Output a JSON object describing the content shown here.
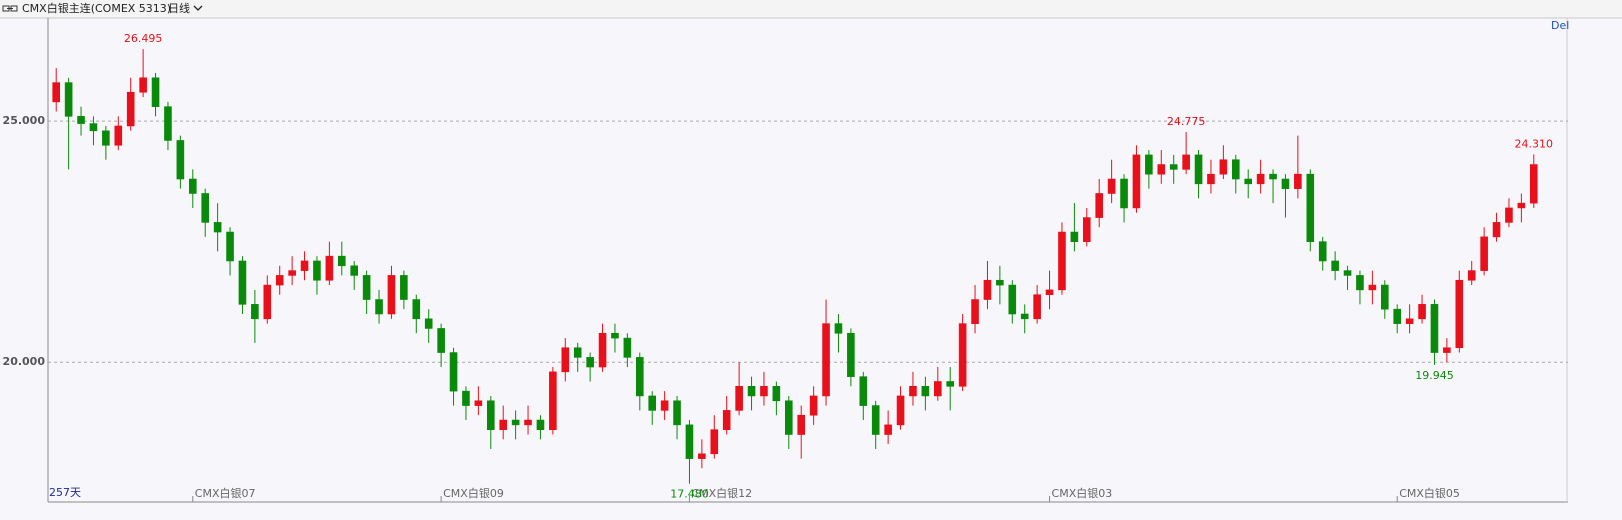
{
  "chart_data": {
    "type": "candlestick",
    "title": "CMX白银主连(COMEX 5313)",
    "period": "日线",
    "bar_count_label": "257天",
    "corner_label": "Del",
    "up_color": "#e8101a",
    "down_color": "#0a8a0a",
    "ylim": [
      17.1,
      27.14
    ],
    "yticks": [
      {
        "value": 20,
        "label": "20.000"
      },
      {
        "value": 25,
        "label": "25.000"
      }
    ],
    "grid": true,
    "categories": [
      null,
      null,
      null,
      null,
      null,
      null,
      null,
      null,
      null,
      null,
      null,
      "CMX白银07",
      null,
      null,
      null,
      null,
      null,
      null,
      null,
      null,
      null,
      null,
      null,
      null,
      null,
      null,
      null,
      null,
      null,
      null,
      null,
      "CMX白银09",
      null,
      null,
      null,
      null,
      null,
      null,
      null,
      null,
      null,
      null,
      null,
      null,
      null,
      null,
      null,
      null,
      null,
      null,
      null,
      "CMX白银12",
      null,
      null,
      null,
      null,
      null,
      null,
      null,
      null,
      null,
      null,
      null,
      null,
      null,
      null,
      null,
      null,
      null,
      null,
      null,
      null,
      null,
      null,
      null,
      null,
      null,
      null,
      null,
      null,
      "CMX白银03",
      null,
      null,
      null,
      null,
      null,
      null,
      null,
      null,
      null,
      null,
      null,
      null,
      null,
      null,
      null,
      null,
      null,
      null,
      null,
      null,
      null,
      null,
      null,
      null,
      null,
      null,
      null,
      "CMX白银05",
      null,
      null,
      null,
      null,
      null,
      null,
      null,
      null,
      null,
      null,
      null
    ],
    "ohlc": [
      [
        25.4,
        26.1,
        25.2,
        25.8
      ],
      [
        25.8,
        25.9,
        24.0,
        25.1
      ],
      [
        25.1,
        25.3,
        24.7,
        24.95
      ],
      [
        24.95,
        25.1,
        24.5,
        24.8
      ],
      [
        24.8,
        24.9,
        24.2,
        24.5
      ],
      [
        24.5,
        25.1,
        24.4,
        24.9
      ],
      [
        24.9,
        25.9,
        24.8,
        25.6
      ],
      [
        25.6,
        26.495,
        25.5,
        25.9
      ],
      [
        25.9,
        26.0,
        25.1,
        25.3
      ],
      [
        25.3,
        25.4,
        24.4,
        24.6
      ],
      [
        24.6,
        24.7,
        23.6,
        23.8
      ],
      [
        23.8,
        24.0,
        23.2,
        23.5
      ],
      [
        23.5,
        23.6,
        22.6,
        22.9
      ],
      [
        22.9,
        23.3,
        22.3,
        22.7
      ],
      [
        22.7,
        22.8,
        21.8,
        22.1
      ],
      [
        22.1,
        22.2,
        21.0,
        21.2
      ],
      [
        21.2,
        21.5,
        20.4,
        20.9
      ],
      [
        20.9,
        21.8,
        20.8,
        21.6
      ],
      [
        21.6,
        22.0,
        21.4,
        21.8
      ],
      [
        21.8,
        22.2,
        21.6,
        21.9
      ],
      [
        21.9,
        22.3,
        21.7,
        22.1
      ],
      [
        22.1,
        22.2,
        21.4,
        21.7
      ],
      [
        21.7,
        22.5,
        21.6,
        22.2
      ],
      [
        22.2,
        22.5,
        21.8,
        22.0
      ],
      [
        22.0,
        22.1,
        21.5,
        21.8
      ],
      [
        21.8,
        21.9,
        21.0,
        21.3
      ],
      [
        21.3,
        21.5,
        20.8,
        21.0
      ],
      [
        21.0,
        22.0,
        20.9,
        21.8
      ],
      [
        21.8,
        21.9,
        21.1,
        21.3
      ],
      [
        21.3,
        21.4,
        20.6,
        20.9
      ],
      [
        20.9,
        21.1,
        20.4,
        20.7
      ],
      [
        20.7,
        20.8,
        19.9,
        20.2
      ],
      [
        20.2,
        20.3,
        19.1,
        19.4
      ],
      [
        19.4,
        19.5,
        18.8,
        19.1
      ],
      [
        19.1,
        19.5,
        18.9,
        19.2
      ],
      [
        19.2,
        19.3,
        18.2,
        18.6
      ],
      [
        18.6,
        19.1,
        18.4,
        18.8
      ],
      [
        18.8,
        19.0,
        18.4,
        18.7
      ],
      [
        18.7,
        19.1,
        18.5,
        18.8
      ],
      [
        18.8,
        18.9,
        18.4,
        18.6
      ],
      [
        18.6,
        19.9,
        18.5,
        19.8
      ],
      [
        19.8,
        20.5,
        19.6,
        20.3
      ],
      [
        20.3,
        20.4,
        19.8,
        20.1
      ],
      [
        20.1,
        20.2,
        19.6,
        19.9
      ],
      [
        19.9,
        20.8,
        19.8,
        20.6
      ],
      [
        20.6,
        20.8,
        20.2,
        20.5
      ],
      [
        20.5,
        20.6,
        19.9,
        20.1
      ],
      [
        20.1,
        20.2,
        19.0,
        19.3
      ],
      [
        19.3,
        19.4,
        18.7,
        19.0
      ],
      [
        19.0,
        19.4,
        18.8,
        19.2
      ],
      [
        19.2,
        19.3,
        18.4,
        18.7
      ],
      [
        18.7,
        18.8,
        17.48,
        18.0
      ],
      [
        18.0,
        18.4,
        17.8,
        18.1
      ],
      [
        18.1,
        18.9,
        18.0,
        18.6
      ],
      [
        18.6,
        19.3,
        18.5,
        19.0
      ],
      [
        19.0,
        20.0,
        18.9,
        19.5
      ],
      [
        19.5,
        19.7,
        19.0,
        19.3
      ],
      [
        19.3,
        19.8,
        19.1,
        19.5
      ],
      [
        19.5,
        19.6,
        18.9,
        19.2
      ],
      [
        19.2,
        19.3,
        18.2,
        18.5
      ],
      [
        18.5,
        19.1,
        18.0,
        18.9
      ],
      [
        18.9,
        19.5,
        18.7,
        19.3
      ],
      [
        19.3,
        21.3,
        19.1,
        20.8
      ],
      [
        20.8,
        21.0,
        20.2,
        20.6
      ],
      [
        20.6,
        20.7,
        19.5,
        19.7
      ],
      [
        19.7,
        19.8,
        18.8,
        19.1
      ],
      [
        19.1,
        19.2,
        18.2,
        18.5
      ],
      [
        18.5,
        19.0,
        18.3,
        18.7
      ],
      [
        18.7,
        19.5,
        18.6,
        19.3
      ],
      [
        19.3,
        19.8,
        19.1,
        19.5
      ],
      [
        19.5,
        19.7,
        19.0,
        19.3
      ],
      [
        19.3,
        19.9,
        19.2,
        19.6
      ],
      [
        19.6,
        19.9,
        19.0,
        19.5
      ],
      [
        19.5,
        21.0,
        19.4,
        20.8
      ],
      [
        20.8,
        21.6,
        20.6,
        21.3
      ],
      [
        21.3,
        22.1,
        21.1,
        21.7
      ],
      [
        21.7,
        22.0,
        21.2,
        21.6
      ],
      [
        21.6,
        21.7,
        20.8,
        21.0
      ],
      [
        21.0,
        21.2,
        20.6,
        20.9
      ],
      [
        20.9,
        21.6,
        20.8,
        21.4
      ],
      [
        21.4,
        21.9,
        21.1,
        21.5
      ],
      [
        21.5,
        22.9,
        21.4,
        22.7
      ],
      [
        22.7,
        23.3,
        22.3,
        22.5
      ],
      [
        22.5,
        23.2,
        22.4,
        23.0
      ],
      [
        23.0,
        23.8,
        22.8,
        23.5
      ],
      [
        23.5,
        24.2,
        23.3,
        23.8
      ],
      [
        23.8,
        23.9,
        22.9,
        23.2
      ],
      [
        23.2,
        24.5,
        23.1,
        24.3
      ],
      [
        24.3,
        24.4,
        23.6,
        23.9
      ],
      [
        23.9,
        24.4,
        23.7,
        24.1
      ],
      [
        24.1,
        24.3,
        23.7,
        24.0
      ],
      [
        24.0,
        24.775,
        23.9,
        24.3
      ],
      [
        24.3,
        24.4,
        23.4,
        23.7
      ],
      [
        23.7,
        24.2,
        23.5,
        23.9
      ],
      [
        23.9,
        24.5,
        23.8,
        24.2
      ],
      [
        24.2,
        24.3,
        23.5,
        23.8
      ],
      [
        23.8,
        24.0,
        23.4,
        23.7
      ],
      [
        23.7,
        24.2,
        23.5,
        23.9
      ],
      [
        23.9,
        24.0,
        23.3,
        23.8
      ],
      [
        23.8,
        23.9,
        23.0,
        23.6
      ],
      [
        23.6,
        24.7,
        23.4,
        23.9
      ],
      [
        23.9,
        24.0,
        22.3,
        22.5
      ],
      [
        22.5,
        22.6,
        21.9,
        22.1
      ],
      [
        22.1,
        22.3,
        21.7,
        21.9
      ],
      [
        21.9,
        22.0,
        21.5,
        21.8
      ],
      [
        21.8,
        21.9,
        21.2,
        21.5
      ],
      [
        21.5,
        21.9,
        21.2,
        21.6
      ],
      [
        21.6,
        21.7,
        20.9,
        21.1
      ],
      [
        21.1,
        21.2,
        20.6,
        20.8
      ],
      [
        20.8,
        21.2,
        20.6,
        20.9
      ],
      [
        20.9,
        21.4,
        20.8,
        21.2
      ],
      [
        21.2,
        21.3,
        19.945,
        20.2
      ],
      [
        20.2,
        20.5,
        20.0,
        20.3
      ],
      [
        20.3,
        21.9,
        20.2,
        21.7
      ],
      [
        21.7,
        22.1,
        21.6,
        21.9
      ],
      [
        21.9,
        22.8,
        21.8,
        22.6
      ],
      [
        22.6,
        23.1,
        22.5,
        22.9
      ],
      [
        22.9,
        23.4,
        22.8,
        23.2
      ],
      [
        23.2,
        23.5,
        22.9,
        23.3
      ],
      [
        23.3,
        24.31,
        23.2,
        24.1
      ]
    ],
    "value_labels": [
      null,
      null,
      null,
      null,
      null,
      null,
      null,
      "26.495",
      null,
      null,
      null,
      null,
      null,
      null,
      null,
      null,
      null,
      null,
      null,
      null,
      null,
      null,
      null,
      null,
      null,
      null,
      null,
      null,
      null,
      null,
      null,
      null,
      null,
      null,
      null,
      null,
      null,
      null,
      null,
      null,
      null,
      null,
      null,
      null,
      null,
      null,
      null,
      null,
      null,
      null,
      null,
      "17.480",
      null,
      null,
      null,
      null,
      null,
      null,
      null,
      null,
      null,
      null,
      null,
      null,
      null,
      null,
      null,
      null,
      null,
      null,
      null,
      null,
      null,
      null,
      null,
      null,
      null,
      null,
      null,
      null,
      null,
      null,
      null,
      null,
      null,
      null,
      null,
      null,
      null,
      null,
      null,
      "24.775",
      null,
      null,
      null,
      null,
      null,
      null,
      null,
      null,
      null,
      null,
      null,
      null,
      null,
      null,
      null,
      null,
      null,
      null,
      null,
      "19.945",
      null,
      null,
      null,
      null,
      null,
      null,
      null,
      "24.310"
    ]
  }
}
